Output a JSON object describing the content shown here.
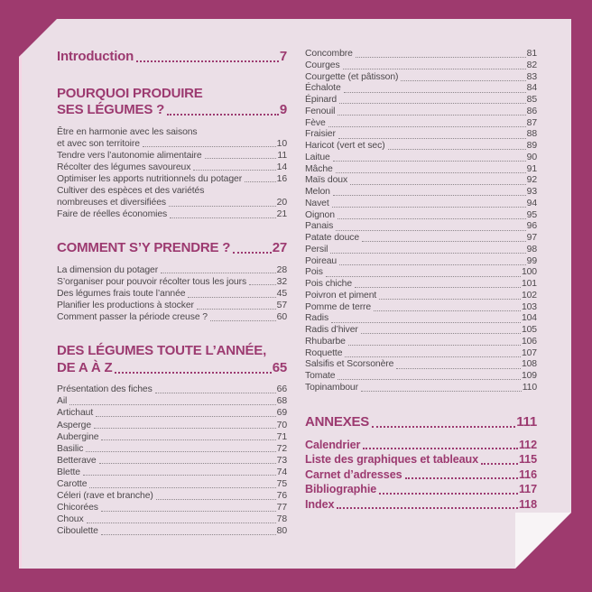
{
  "colors": {
    "background": "#9e3a6e",
    "paper": "#ebdfe7",
    "paper_edge_strip": "#f5d5e4",
    "fold_corner": "#f8f4f6",
    "accent_heading": "#9c3a70",
    "body_text": "#4c484b",
    "leader_dots": "#8d878b"
  },
  "toc": {
    "left_column": [
      {
        "kind": "h1",
        "lines": [
          "Introduction"
        ],
        "page": "7"
      },
      {
        "kind": "h1",
        "lines": [
          "POURQUOI PRODUIRE",
          "SES LÉGUMES ?"
        ],
        "page": "9"
      },
      {
        "kind": "item",
        "lines": [
          "Être en harmonie avec les saisons",
          "et avec son territoire"
        ],
        "page": "10"
      },
      {
        "kind": "item",
        "lines": [
          "Tendre vers l’autonomie alimentaire"
        ],
        "page": "11"
      },
      {
        "kind": "item",
        "lines": [
          "Récolter des légumes savoureux"
        ],
        "page": "14"
      },
      {
        "kind": "item",
        "lines": [
          "Optimiser les apports nutritionnels du potager"
        ],
        "page": "16"
      },
      {
        "kind": "item",
        "lines": [
          "Cultiver des espèces et des variétés",
          "nombreuses et diversifiées"
        ],
        "page": "20"
      },
      {
        "kind": "item",
        "lines": [
          "Faire de réelles économies"
        ],
        "page": "21"
      },
      {
        "kind": "h1",
        "lines": [
          "COMMENT S’Y PRENDRE ?"
        ],
        "page": "27"
      },
      {
        "kind": "item",
        "lines": [
          "La dimension du potager"
        ],
        "page": "28"
      },
      {
        "kind": "item",
        "lines": [
          "S’organiser pour pouvoir récolter tous les jours"
        ],
        "page": "32"
      },
      {
        "kind": "item",
        "lines": [
          "Des légumes frais toute l’année"
        ],
        "page": "45"
      },
      {
        "kind": "item",
        "lines": [
          "Planifier les productions à stocker"
        ],
        "page": "57"
      },
      {
        "kind": "item",
        "lines": [
          "Comment passer la période creuse ?"
        ],
        "page": "60"
      },
      {
        "kind": "h1",
        "lines": [
          "DES LÉGUMES TOUTE L’ANNÉE,",
          "DE A À Z"
        ],
        "page": "65"
      },
      {
        "kind": "item",
        "lines": [
          "Présentation des fiches"
        ],
        "page": "66"
      },
      {
        "kind": "item",
        "lines": [
          "Ail"
        ],
        "page": "68"
      },
      {
        "kind": "item",
        "lines": [
          "Artichaut"
        ],
        "page": "69"
      },
      {
        "kind": "item",
        "lines": [
          "Asperge"
        ],
        "page": "70"
      },
      {
        "kind": "item",
        "lines": [
          "Aubergine"
        ],
        "page": "71"
      },
      {
        "kind": "item",
        "lines": [
          "Basilic"
        ],
        "page": "72"
      },
      {
        "kind": "item",
        "lines": [
          "Betterave"
        ],
        "page": "73"
      },
      {
        "kind": "item",
        "lines": [
          "Blette"
        ],
        "page": "74"
      },
      {
        "kind": "item",
        "lines": [
          "Carotte"
        ],
        "page": "75"
      },
      {
        "kind": "item",
        "lines": [
          "Céleri (rave et branche)"
        ],
        "page": "76"
      },
      {
        "kind": "item",
        "lines": [
          "Chicorées"
        ],
        "page": "77"
      },
      {
        "kind": "item",
        "lines": [
          "Choux"
        ],
        "page": "78"
      },
      {
        "kind": "item",
        "lines": [
          "Ciboulette"
        ],
        "page": "80"
      }
    ],
    "right_column": [
      {
        "kind": "item",
        "lines": [
          "Concombre"
        ],
        "page": "81"
      },
      {
        "kind": "item",
        "lines": [
          "Courges"
        ],
        "page": "82"
      },
      {
        "kind": "item",
        "lines": [
          "Courgette (et pâtisson)"
        ],
        "page": "83"
      },
      {
        "kind": "item",
        "lines": [
          "Échalote"
        ],
        "page": "84"
      },
      {
        "kind": "item",
        "lines": [
          "Épinard"
        ],
        "page": "85"
      },
      {
        "kind": "item",
        "lines": [
          "Fenouil"
        ],
        "page": "86"
      },
      {
        "kind": "item",
        "lines": [
          "Fève"
        ],
        "page": "87"
      },
      {
        "kind": "item",
        "lines": [
          "Fraisier"
        ],
        "page": "88"
      },
      {
        "kind": "item",
        "lines": [
          "Haricot (vert et sec)"
        ],
        "page": "89"
      },
      {
        "kind": "item",
        "lines": [
          "Laitue"
        ],
        "page": "90"
      },
      {
        "kind": "item",
        "lines": [
          "Mâche"
        ],
        "page": "91"
      },
      {
        "kind": "item",
        "lines": [
          "Maïs doux"
        ],
        "page": "92"
      },
      {
        "kind": "item",
        "lines": [
          "Melon"
        ],
        "page": "93"
      },
      {
        "kind": "item",
        "lines": [
          "Navet"
        ],
        "page": "94"
      },
      {
        "kind": "item",
        "lines": [
          "Oignon"
        ],
        "page": "95"
      },
      {
        "kind": "item",
        "lines": [
          "Panais"
        ],
        "page": "96"
      },
      {
        "kind": "item",
        "lines": [
          "Patate douce"
        ],
        "page": "97"
      },
      {
        "kind": "item",
        "lines": [
          "Persil"
        ],
        "page": "98"
      },
      {
        "kind": "item",
        "lines": [
          "Poireau"
        ],
        "page": "99"
      },
      {
        "kind": "item",
        "lines": [
          "Pois"
        ],
        "page": "100"
      },
      {
        "kind": "item",
        "lines": [
          "Pois chiche"
        ],
        "page": "101"
      },
      {
        "kind": "item",
        "lines": [
          "Poivron et piment"
        ],
        "page": "102"
      },
      {
        "kind": "item",
        "lines": [
          "Pomme de terre"
        ],
        "page": "103"
      },
      {
        "kind": "item",
        "lines": [
          "Radis"
        ],
        "page": "104"
      },
      {
        "kind": "item",
        "lines": [
          "Radis d’hiver"
        ],
        "page": "105"
      },
      {
        "kind": "item",
        "lines": [
          "Rhubarbe"
        ],
        "page": "106"
      },
      {
        "kind": "item",
        "lines": [
          "Roquette"
        ],
        "page": "107"
      },
      {
        "kind": "item",
        "lines": [
          "Salsifis et Scorsonère"
        ],
        "page": "108"
      },
      {
        "kind": "item",
        "lines": [
          "Tomate"
        ],
        "page": "109"
      },
      {
        "kind": "item",
        "lines": [
          "Topinambour"
        ],
        "page": "110"
      },
      {
        "kind": "h1",
        "lines": [
          "ANNEXES"
        ],
        "page": "111"
      },
      {
        "kind": "bold",
        "lines": [
          "Calendrier"
        ],
        "page": "112"
      },
      {
        "kind": "bold",
        "lines": [
          "Liste des graphiques et tableaux"
        ],
        "page": "115"
      },
      {
        "kind": "bold",
        "lines": [
          "Carnet d’adresses"
        ],
        "page": "116"
      },
      {
        "kind": "bold",
        "lines": [
          "Bibliographie"
        ],
        "page": "117"
      },
      {
        "kind": "bold",
        "lines": [
          "Index"
        ],
        "page": "118"
      }
    ]
  }
}
